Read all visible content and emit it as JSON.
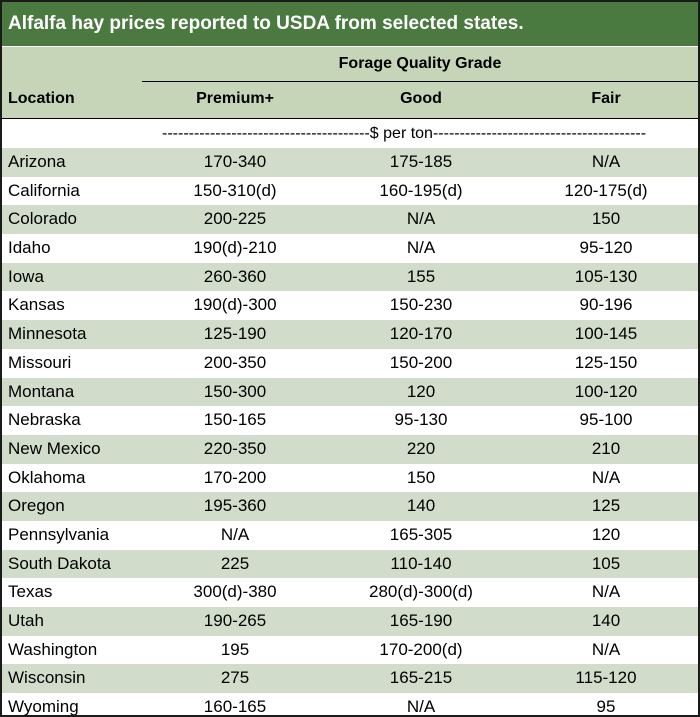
{
  "title": "Alfalfa hay prices reported to USDA from selected states.",
  "header": {
    "group": "Forage Quality Grade",
    "location": "Location",
    "premium": "Premium+",
    "good": "Good",
    "fair": "Fair"
  },
  "unit": "---------------------------------------$ per ton----------------------------------------",
  "rows": [
    {
      "location": "Arizona",
      "premium": "170-340",
      "good": "175-185",
      "fair": "N/A"
    },
    {
      "location": "California",
      "premium": "150-310(d)",
      "good": "160-195(d)",
      "fair": "120-175(d)"
    },
    {
      "location": "Colorado",
      "premium": "200-225",
      "good": "N/A",
      "fair": "150"
    },
    {
      "location": "Idaho",
      "premium": "190(d)-210",
      "good": "N/A",
      "fair": "95-120"
    },
    {
      "location": "Iowa",
      "premium": "260-360",
      "good": "155",
      "fair": "105-130"
    },
    {
      "location": "Kansas",
      "premium": "190(d)-300",
      "good": "150-230",
      "fair": "90-196"
    },
    {
      "location": "Minnesota",
      "premium": "125-190",
      "good": "120-170",
      "fair": "100-145"
    },
    {
      "location": "Missouri",
      "premium": "200-350",
      "good": "150-200",
      "fair": "125-150"
    },
    {
      "location": "Montana",
      "premium": "150-300",
      "good": "120",
      "fair": "100-120"
    },
    {
      "location": "Nebraska",
      "premium": "150-165",
      "good": "95-130",
      "fair": "95-100"
    },
    {
      "location": "New Mexico",
      "premium": "220-350",
      "good": "220",
      "fair": "210"
    },
    {
      "location": "Oklahoma",
      "premium": "170-200",
      "good": "150",
      "fair": "N/A"
    },
    {
      "location": "Oregon",
      "premium": "195-360",
      "good": "140",
      "fair": "125"
    },
    {
      "location": "Pennsylvania",
      "premium": "N/A",
      "good": "165-305",
      "fair": "120"
    },
    {
      "location": "South Dakota",
      "premium": "225",
      "good": "110-140",
      "fair": "105"
    },
    {
      "location": "Texas",
      "premium": "300(d)-380",
      "good": "280(d)-300(d)",
      "fair": "N/A"
    },
    {
      "location": "Utah",
      "premium": "190-265",
      "good": "165-190",
      "fair": "140"
    },
    {
      "location": "Washington",
      "premium": "195",
      "good": "170-200(d)",
      "fair": "N/A"
    },
    {
      "location": "Wisconsin",
      "premium": "275",
      "good": "165-215",
      "fair": "115-120"
    },
    {
      "location": "Wyoming",
      "premium": "160-165",
      "good": "N/A",
      "fair": "95"
    }
  ]
}
